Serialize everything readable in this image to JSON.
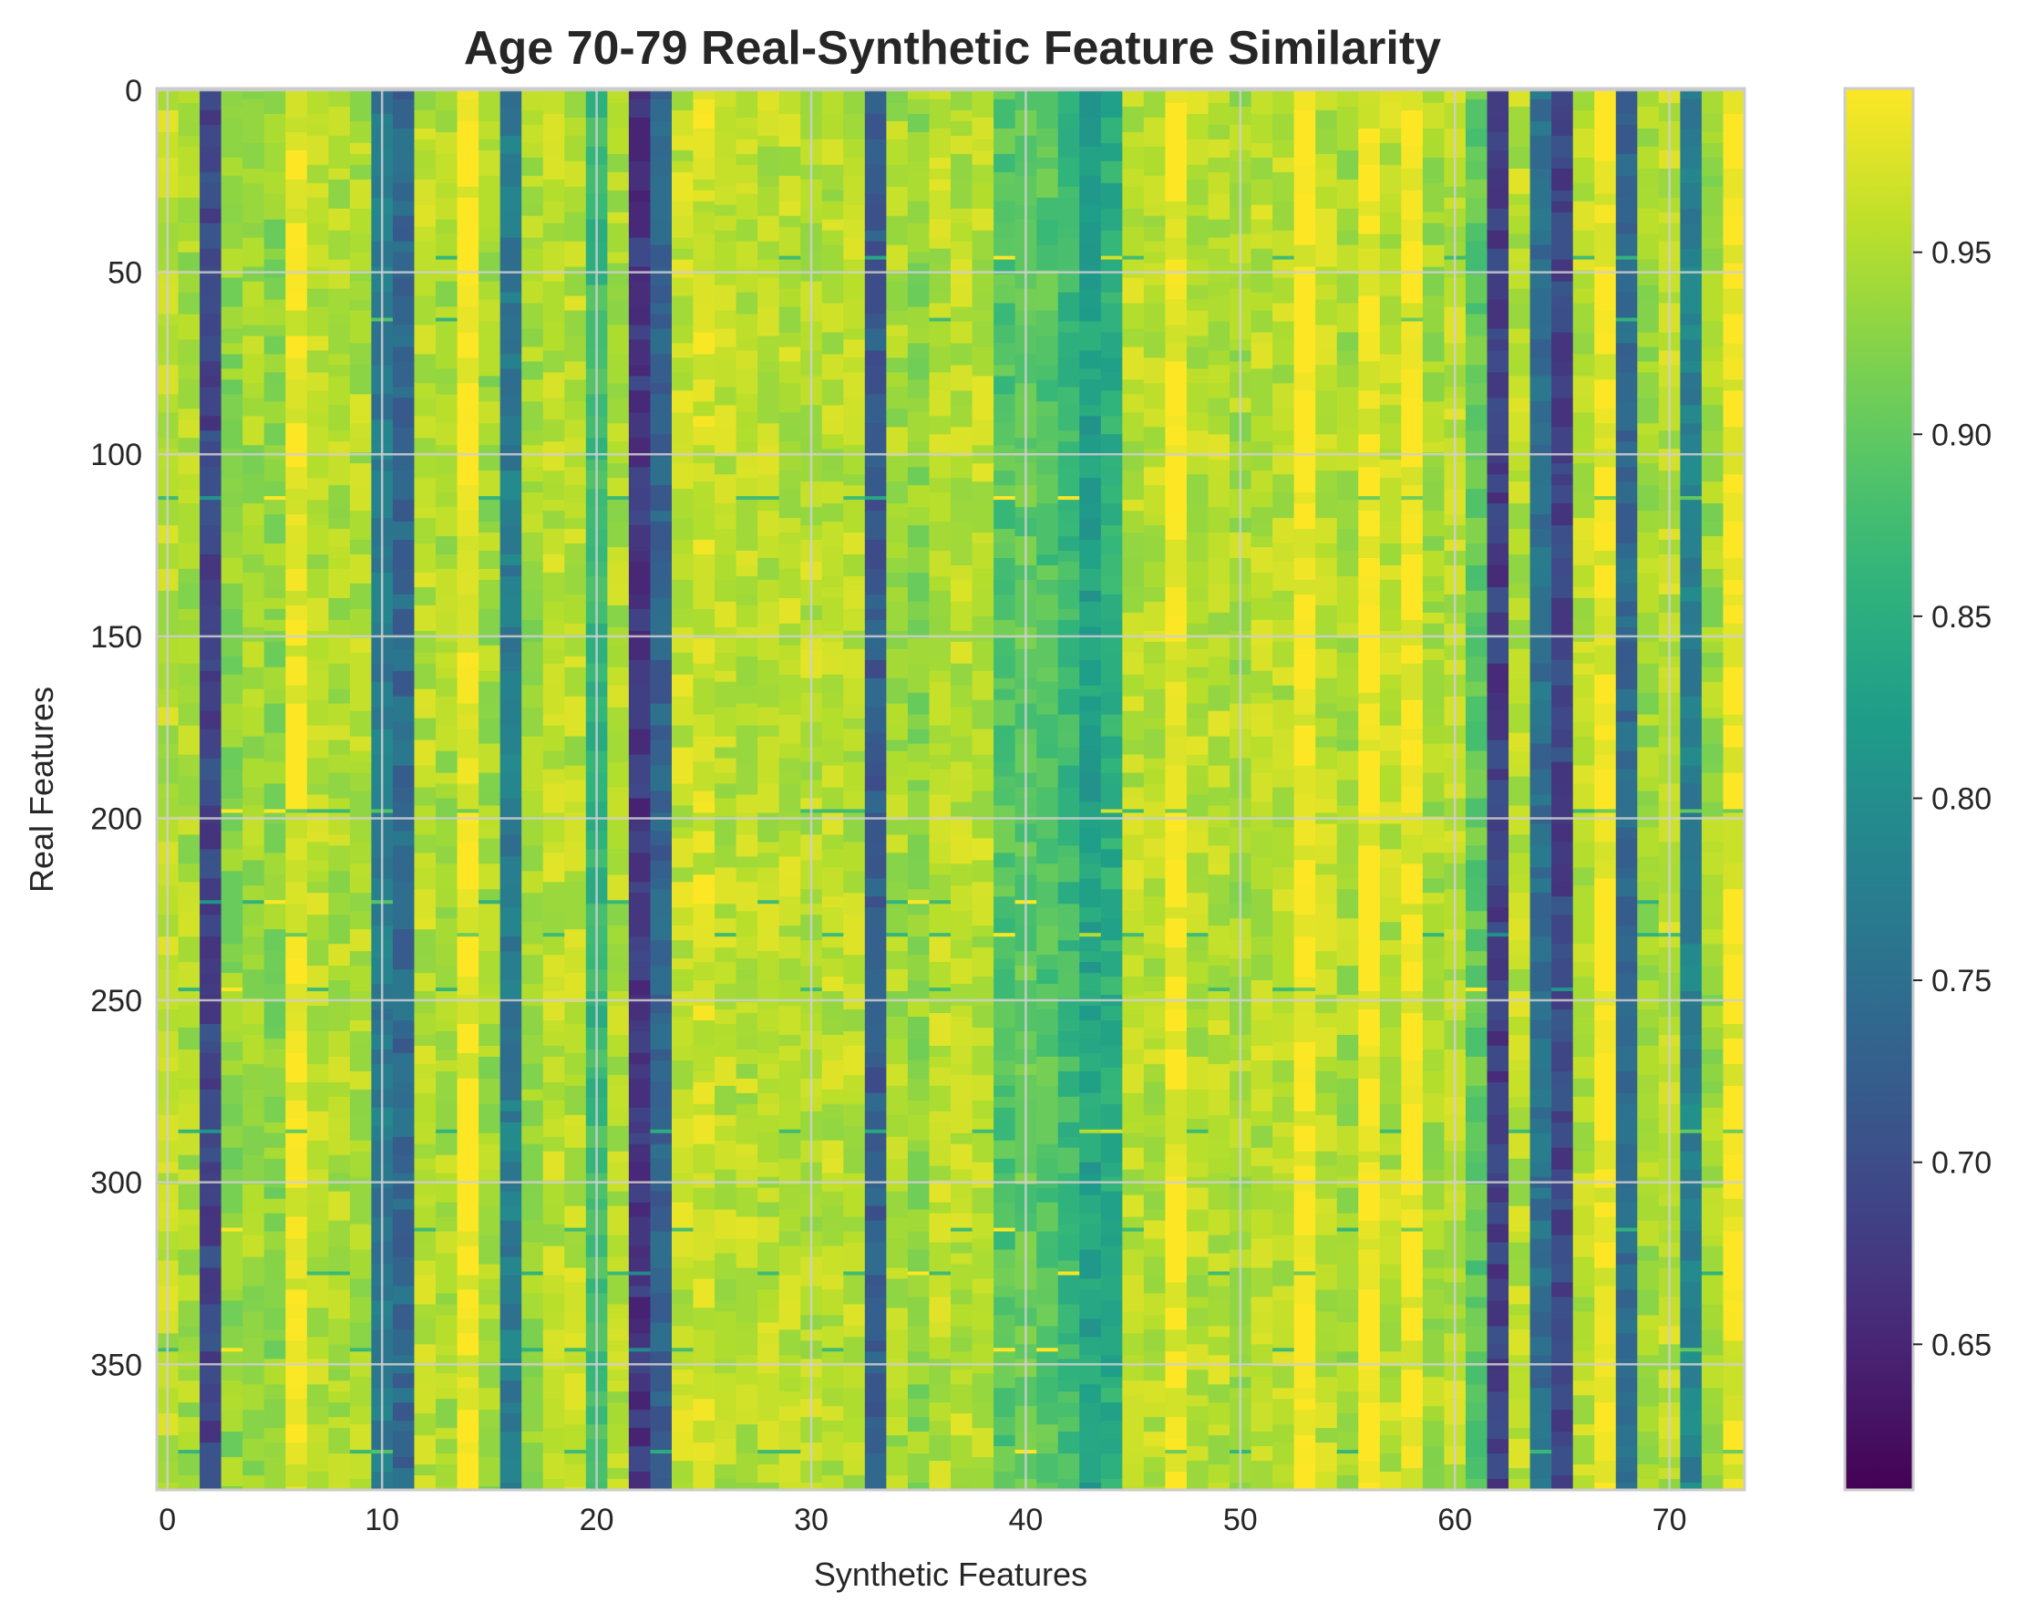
{
  "chart_data": {
    "type": "heatmap",
    "title": "Age 70-79 Real-Synthetic Feature Similarity",
    "xlabel": "Synthetic Features",
    "ylabel": "Real Features",
    "n_cols": 74,
    "n_rows": 385,
    "x_ticks": [
      "0",
      "10",
      "20",
      "30",
      "40",
      "50",
      "60",
      "70"
    ],
    "x_tick_values": [
      0,
      10,
      20,
      30,
      40,
      50,
      60,
      70
    ],
    "y_ticks": [
      "0",
      "50",
      "100",
      "150",
      "200",
      "250",
      "300",
      "350"
    ],
    "y_tick_values": [
      0,
      50,
      100,
      150,
      200,
      250,
      300,
      350
    ],
    "colormap": "viridis",
    "vmin": 0.61,
    "vmax": 0.995,
    "colorbar_ticks": [
      "0.65",
      "0.70",
      "0.75",
      "0.80",
      "0.85",
      "0.90",
      "0.95"
    ],
    "colorbar_tick_values": [
      0.65,
      0.7,
      0.75,
      0.8,
      0.85,
      0.9,
      0.95
    ],
    "column_mean_similarity": [
      0.955,
      0.945,
      0.69,
      0.93,
      0.94,
      0.93,
      0.985,
      0.955,
      0.95,
      0.95,
      0.77,
      0.74,
      0.955,
      0.945,
      0.99,
      0.94,
      0.77,
      0.94,
      0.955,
      0.955,
      0.87,
      0.95,
      0.67,
      0.73,
      0.96,
      0.97,
      0.955,
      0.955,
      0.955,
      0.955,
      0.955,
      0.955,
      0.955,
      0.72,
      0.945,
      0.93,
      0.955,
      0.955,
      0.955,
      0.89,
      0.9,
      0.89,
      0.87,
      0.83,
      0.85,
      0.955,
      0.955,
      0.99,
      0.955,
      0.955,
      0.945,
      0.955,
      0.955,
      0.99,
      0.955,
      0.945,
      0.99,
      0.955,
      0.99,
      0.945,
      0.955,
      0.9,
      0.68,
      0.955,
      0.75,
      0.69,
      0.955,
      0.99,
      0.74,
      0.94,
      0.955,
      0.78,
      0.94,
      0.99
    ],
    "highlighted_rows": [
      46,
      63,
      112,
      198,
      223,
      232,
      247,
      286,
      313,
      325,
      346,
      374
    ]
  }
}
